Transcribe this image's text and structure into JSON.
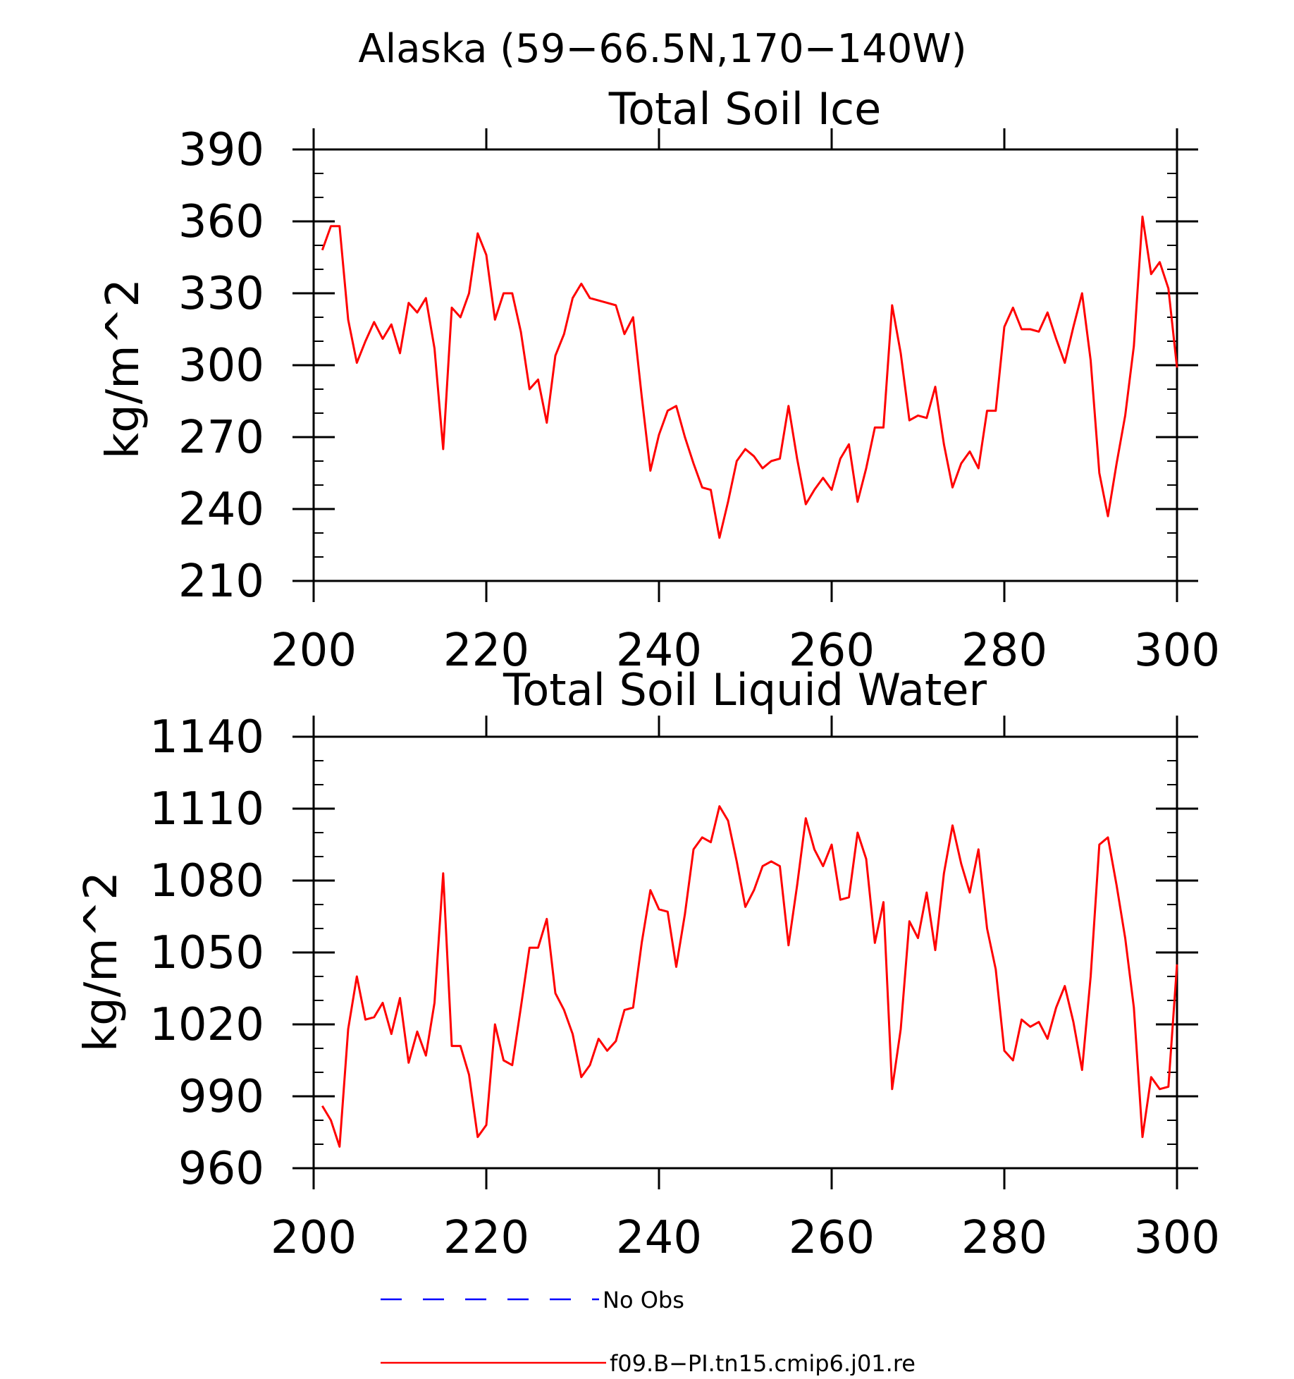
{
  "figure": {
    "title": "Alaska (59−66.5N,170−140W)"
  },
  "colors": {
    "model_line": "#ff0000",
    "obs_line": "#0000ff",
    "axes": "#000000",
    "background": "#ffffff"
  },
  "legend": {
    "items": [
      {
        "label": "No Obs",
        "style": "dashed",
        "color": "#0000ff"
      },
      {
        "label": "f09.B−PI.tn15.cmip6.j01.re",
        "style": "solid",
        "color": "#ff0000"
      }
    ]
  },
  "chart_data": [
    {
      "type": "line",
      "title": "Total Soil Ice",
      "xlabel": "",
      "ylabel": "kg/m^2",
      "xlim": [
        200,
        300
      ],
      "ylim": [
        210,
        390
      ],
      "xticks": [
        200,
        220,
        240,
        260,
        280,
        300
      ],
      "yticks": [
        210,
        240,
        270,
        300,
        330,
        360,
        390
      ],
      "grid": false,
      "series": [
        {
          "name": "f09.B−PI.tn15.cmip6.j01.re",
          "x": [
            201,
            202,
            203,
            204,
            205,
            206,
            207,
            208,
            209,
            210,
            211,
            212,
            213,
            214,
            215,
            216,
            217,
            218,
            219,
            220,
            221,
            222,
            223,
            224,
            225,
            226,
            227,
            228,
            229,
            230,
            231,
            232,
            233,
            234,
            235,
            236,
            237,
            238,
            239,
            240,
            241,
            242,
            243,
            244,
            245,
            246,
            247,
            248,
            249,
            250,
            251,
            252,
            253,
            254,
            255,
            256,
            257,
            258,
            259,
            260,
            261,
            262,
            263,
            264,
            265,
            266,
            267,
            268,
            269,
            270,
            271,
            272,
            273,
            274,
            275,
            276,
            277,
            278,
            279,
            280,
            281,
            282,
            283,
            284,
            285,
            286,
            287,
            288,
            289,
            290,
            291,
            292,
            293,
            294,
            295,
            296,
            297,
            298,
            299,
            300
          ],
          "values": [
            348,
            358,
            358,
            319,
            301,
            310,
            318,
            311,
            317,
            305,
            326,
            322,
            328,
            307,
            265,
            324,
            320,
            330,
            355,
            346,
            319,
            330,
            330,
            314,
            290,
            294,
            276,
            304,
            313,
            328,
            334,
            328,
            327,
            326,
            325,
            313,
            320,
            287,
            256,
            271,
            281,
            283,
            270,
            259,
            249,
            248,
            228,
            243,
            260,
            265,
            262,
            257,
            260,
            261,
            283,
            261,
            242,
            248,
            253,
            248,
            261,
            267,
            243,
            257,
            274,
            274,
            325,
            305,
            277,
            279,
            278,
            291,
            267,
            249,
            259,
            264,
            257,
            281,
            281,
            316,
            324,
            315,
            315,
            314,
            322,
            311,
            301,
            316,
            330,
            302,
            255,
            237,
            259,
            279,
            308,
            362,
            338,
            343,
            332,
            299
          ]
        }
      ]
    },
    {
      "type": "line",
      "title": "Total Soil Liquid Water",
      "xlabel": "",
      "ylabel": "kg/m^2",
      "xlim": [
        200,
        300
      ],
      "ylim": [
        960,
        1140
      ],
      "xticks": [
        200,
        220,
        240,
        260,
        280,
        300
      ],
      "yticks": [
        960,
        990,
        1020,
        1050,
        1080,
        1110,
        1140
      ],
      "grid": false,
      "series": [
        {
          "name": "f09.B−PI.tn15.cmip6.j01.re",
          "x": [
            201,
            202,
            203,
            204,
            205,
            206,
            207,
            208,
            209,
            210,
            211,
            212,
            213,
            214,
            215,
            216,
            217,
            218,
            219,
            220,
            221,
            222,
            223,
            224,
            225,
            226,
            227,
            228,
            229,
            230,
            231,
            232,
            233,
            234,
            235,
            236,
            237,
            238,
            239,
            240,
            241,
            242,
            243,
            244,
            245,
            246,
            247,
            248,
            249,
            250,
            251,
            252,
            253,
            254,
            255,
            256,
            257,
            258,
            259,
            260,
            261,
            262,
            263,
            264,
            265,
            266,
            267,
            268,
            269,
            270,
            271,
            272,
            273,
            274,
            275,
            276,
            277,
            278,
            279,
            280,
            281,
            282,
            283,
            284,
            285,
            286,
            287,
            288,
            289,
            290,
            291,
            292,
            293,
            294,
            295,
            296,
            297,
            298,
            299,
            300
          ],
          "values": [
            986,
            980,
            969,
            1018,
            1040,
            1022,
            1023,
            1029,
            1016,
            1031,
            1004,
            1017,
            1007,
            1029,
            1083,
            1011,
            1011,
            999,
            973,
            978,
            1020,
            1005,
            1003,
            1027,
            1052,
            1052,
            1064,
            1033,
            1026,
            1016,
            998,
            1003,
            1014,
            1009,
            1013,
            1026,
            1027,
            1054,
            1076,
            1068,
            1067,
            1044,
            1066,
            1093,
            1098,
            1096,
            1111,
            1105,
            1088,
            1069,
            1076,
            1086,
            1088,
            1086,
            1053,
            1078,
            1106,
            1093,
            1086,
            1095,
            1072,
            1073,
            1100,
            1089,
            1054,
            1071,
            993,
            1018,
            1063,
            1056,
            1075,
            1051,
            1083,
            1103,
            1087,
            1075,
            1093,
            1060,
            1043,
            1009,
            1005,
            1022,
            1019,
            1021,
            1014,
            1027,
            1036,
            1021,
            1001,
            1040,
            1095,
            1098,
            1078,
            1056,
            1027,
            973,
            998,
            993,
            994,
            1045
          ]
        }
      ]
    }
  ]
}
